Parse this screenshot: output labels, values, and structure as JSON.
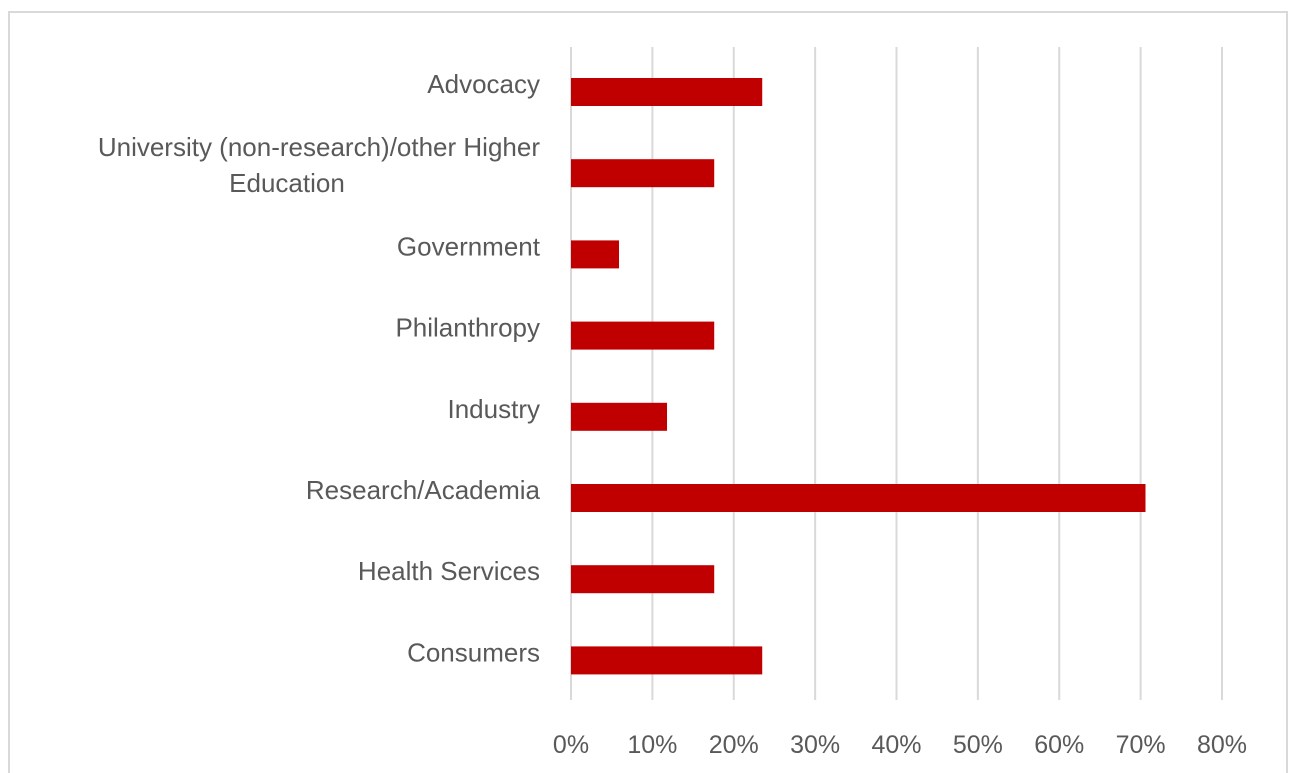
{
  "chart_data": {
    "type": "bar",
    "orientation": "horizontal",
    "categories": [
      [
        "Advocacy"
      ],
      [
        "University (non-research)/other Higher",
        "Education"
      ],
      [
        "Government"
      ],
      [
        "Philanthropy"
      ],
      [
        "Industry"
      ],
      [
        "Research/Academia"
      ],
      [
        "Health Services"
      ],
      [
        "Consumers"
      ]
    ],
    "values": [
      23.5,
      17.6,
      5.9,
      17.6,
      11.8,
      70.6,
      17.6,
      23.5
    ],
    "xlim": [
      0,
      80
    ],
    "xticks": [
      "0%",
      "10%",
      "20%",
      "30%",
      "40%",
      "50%",
      "60%",
      "70%",
      "80%"
    ],
    "title": "",
    "xlabel": "",
    "ylabel": "",
    "grid": "vertical",
    "legend": "none",
    "bar_color": "#c00000",
    "grid_color": "#d9d9d9",
    "text_color": "#595959"
  }
}
